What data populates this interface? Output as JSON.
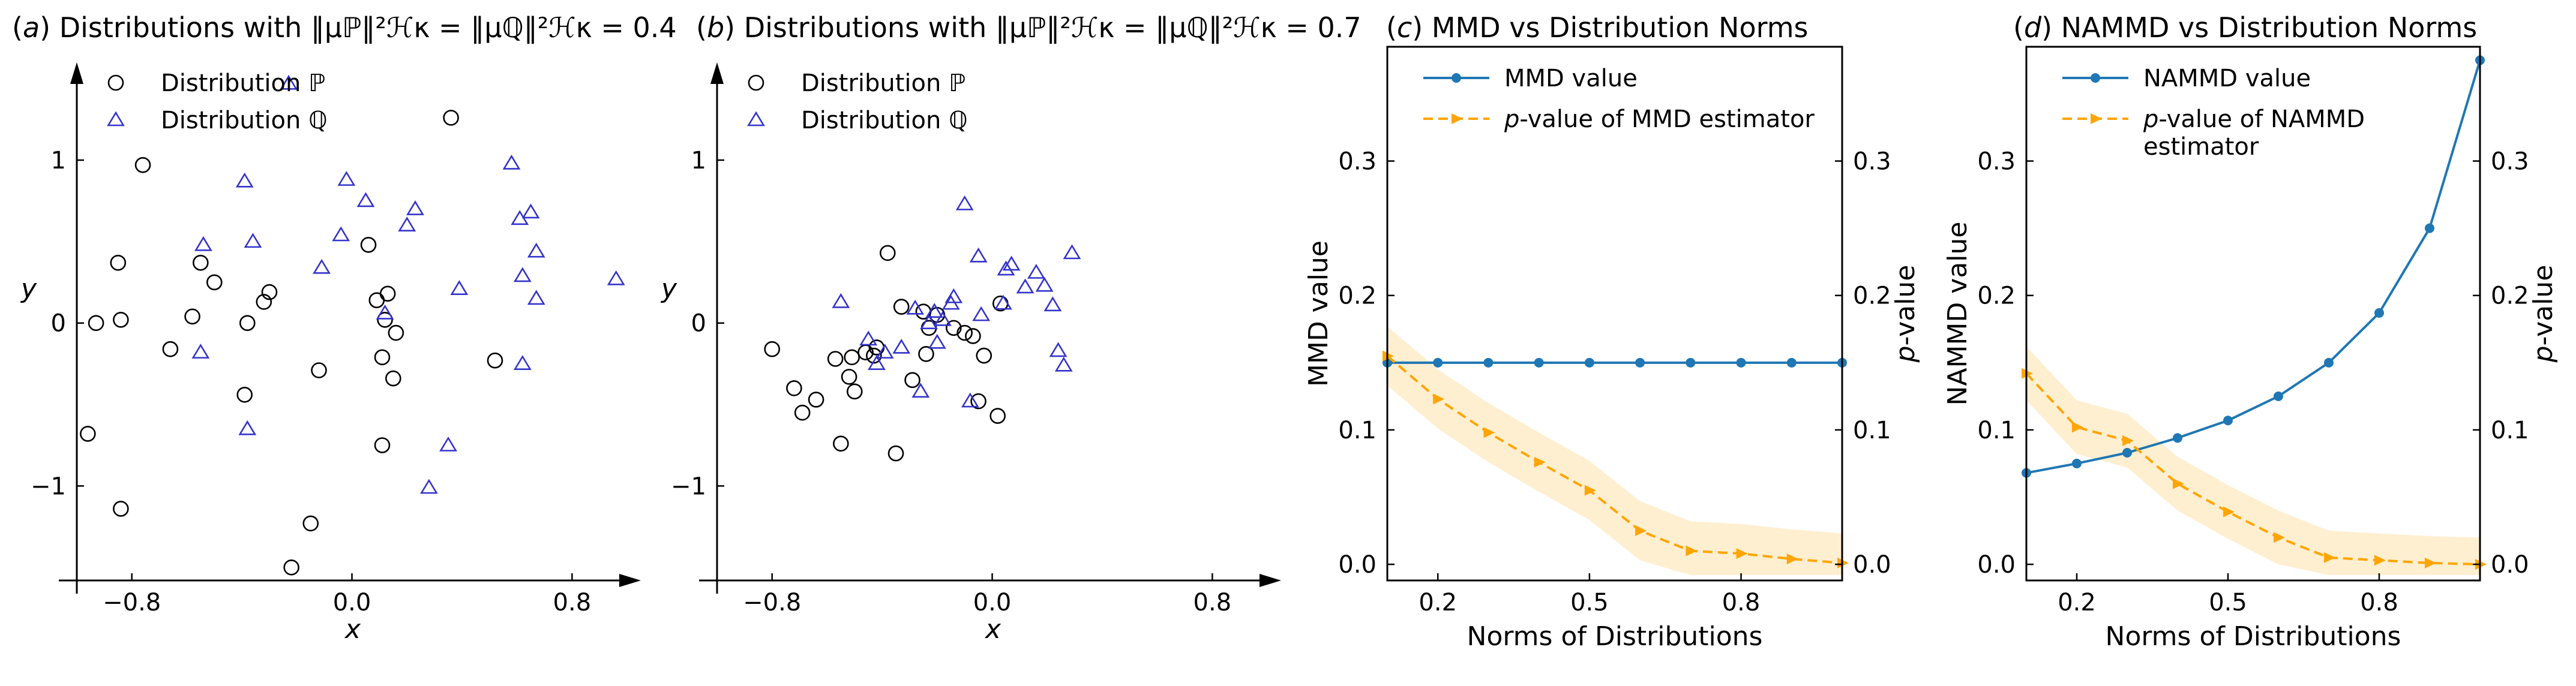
{
  "chart_data": [
    {
      "id": "a",
      "type": "scatter",
      "title": {
        "prefix": "(",
        "letter": "a",
        "suffix": ") Distributions with",
        "formula": "‖μℙ‖²ℋκ = ‖μℚ‖²ℋκ = 0.4"
      },
      "xlabel": "x",
      "ylabel": "y",
      "xlim": [
        -1.0,
        1.05
      ],
      "ylim": [
        -1.58,
        1.6
      ],
      "xticks": [
        {
          "v": -0.8,
          "label": "−0.8"
        },
        {
          "v": 0.0,
          "label": "0.0"
        },
        {
          "v": 0.8,
          "label": "0.8"
        }
      ],
      "yticks": [
        {
          "v": 1,
          "label": "1"
        },
        {
          "v": 0,
          "label": "0"
        },
        {
          "v": -1,
          "label": "−1"
        }
      ],
      "legend": [
        "Distribution ℙ",
        "Distribution ℚ"
      ],
      "series": [
        {
          "name": "P",
          "marker": "circle",
          "color": "#000000",
          "points": [
            [
              -0.93,
              0.0
            ],
            [
              -0.85,
              0.37
            ],
            [
              -0.84,
              0.02
            ],
            [
              -0.76,
              0.97
            ],
            [
              -0.66,
              -0.16
            ],
            [
              -0.58,
              0.04
            ],
            [
              -0.55,
              0.37
            ],
            [
              -0.5,
              0.25
            ],
            [
              -0.39,
              -0.44
            ],
            [
              -0.38,
              0.0
            ],
            [
              -0.32,
              0.13
            ],
            [
              -0.3,
              0.19
            ],
            [
              -0.12,
              -0.29
            ],
            [
              0.06,
              0.48
            ],
            [
              0.09,
              0.14
            ],
            [
              0.11,
              -0.21
            ],
            [
              0.13,
              0.18
            ],
            [
              0.15,
              -0.34
            ],
            [
              0.16,
              -0.06
            ],
            [
              0.11,
              -0.75
            ],
            [
              0.36,
              1.26
            ],
            [
              0.52,
              -0.23
            ],
            [
              -0.96,
              -0.68
            ],
            [
              -0.84,
              -1.14
            ],
            [
              -0.15,
              -1.23
            ],
            [
              -0.22,
              -1.5
            ],
            [
              0.12,
              0.02
            ]
          ]
        },
        {
          "name": "Q",
          "marker": "triangle",
          "color": "#3333cc",
          "points": [
            [
              -0.23,
              1.47
            ],
            [
              -0.39,
              0.87
            ],
            [
              -0.36,
              0.5
            ],
            [
              -0.54,
              0.48
            ],
            [
              -0.55,
              -0.18
            ],
            [
              -0.38,
              -0.65
            ],
            [
              -0.02,
              0.88
            ],
            [
              -0.04,
              0.54
            ],
            [
              0.05,
              0.75
            ],
            [
              0.12,
              0.06
            ],
            [
              0.2,
              0.6
            ],
            [
              0.23,
              0.7
            ],
            [
              -0.11,
              0.34
            ],
            [
              0.39,
              0.21
            ],
            [
              0.35,
              -0.75
            ],
            [
              0.28,
              -1.01
            ],
            [
              0.58,
              0.98
            ],
            [
              0.61,
              0.64
            ],
            [
              0.65,
              0.68
            ],
            [
              0.67,
              0.44
            ],
            [
              0.62,
              0.29
            ],
            [
              0.67,
              0.15
            ],
            [
              0.62,
              -0.25
            ],
            [
              0.96,
              0.27
            ]
          ]
        }
      ]
    },
    {
      "id": "b",
      "type": "scatter",
      "title": {
        "prefix": "(",
        "letter": "b",
        "suffix": ") Distributions with",
        "formula": "‖μℙ‖²ℋκ = ‖μℚ‖²ℋκ = 0.7"
      },
      "xlabel": "x",
      "ylabel": "y",
      "xlim": [
        -1.0,
        1.05
      ],
      "ylim": [
        -1.58,
        1.6
      ],
      "xticks": [
        {
          "v": -0.8,
          "label": "−0.8"
        },
        {
          "v": 0.0,
          "label": "0.0"
        },
        {
          "v": 0.8,
          "label": "0.8"
        }
      ],
      "yticks": [
        {
          "v": 1,
          "label": "1"
        },
        {
          "v": 0,
          "label": "0"
        },
        {
          "v": -1,
          "label": "−1"
        }
      ],
      "legend": [
        "Distribution ℙ",
        "Distribution ℚ"
      ],
      "series": [
        {
          "name": "P",
          "marker": "circle",
          "color": "#000000",
          "points": [
            [
              -0.8,
              -0.16
            ],
            [
              -0.72,
              -0.4
            ],
            [
              -0.69,
              -0.55
            ],
            [
              -0.64,
              -0.47
            ],
            [
              -0.57,
              -0.22
            ],
            [
              -0.52,
              -0.33
            ],
            [
              -0.51,
              -0.21
            ],
            [
              -0.5,
              -0.42
            ],
            [
              -0.46,
              -0.18
            ],
            [
              -0.43,
              -0.2
            ],
            [
              -0.42,
              -0.15
            ],
            [
              -0.38,
              0.43
            ],
            [
              -0.35,
              -0.8
            ],
            [
              -0.33,
              0.1
            ],
            [
              -0.29,
              -0.35
            ],
            [
              -0.25,
              0.07
            ],
            [
              -0.24,
              -0.19
            ],
            [
              -0.23,
              -0.03
            ],
            [
              -0.2,
              0.05
            ],
            [
              -0.14,
              -0.03
            ],
            [
              -0.1,
              -0.06
            ],
            [
              -0.07,
              -0.08
            ],
            [
              -0.05,
              -0.48
            ],
            [
              -0.03,
              -0.2
            ],
            [
              0.03,
              0.12
            ],
            [
              0.02,
              -0.57
            ],
            [
              -0.55,
              -0.74
            ]
          ]
        },
        {
          "name": "Q",
          "marker": "triangle",
          "color": "#3333cc",
          "points": [
            [
              -0.55,
              0.13
            ],
            [
              -0.45,
              -0.1
            ],
            [
              -0.42,
              -0.25
            ],
            [
              -0.39,
              -0.18
            ],
            [
              -0.33,
              -0.15
            ],
            [
              -0.28,
              0.09
            ],
            [
              -0.26,
              -0.42
            ],
            [
              -0.23,
              0.0
            ],
            [
              -0.21,
              0.07
            ],
            [
              -0.2,
              -0.12
            ],
            [
              -0.18,
              0.02
            ],
            [
              -0.15,
              0.12
            ],
            [
              -0.14,
              0.16
            ],
            [
              -0.08,
              -0.48
            ],
            [
              -0.05,
              0.41
            ],
            [
              -0.1,
              0.73
            ],
            [
              0.04,
              0.12
            ],
            [
              0.05,
              0.33
            ],
            [
              0.07,
              0.36
            ],
            [
              0.12,
              0.22
            ],
            [
              0.16,
              0.31
            ],
            [
              0.19,
              0.23
            ],
            [
              0.22,
              0.11
            ],
            [
              0.24,
              -0.17
            ],
            [
              0.26,
              -0.26
            ],
            [
              0.29,
              0.43
            ],
            [
              -0.04,
              0.05
            ]
          ]
        }
      ]
    },
    {
      "id": "c",
      "type": "line",
      "title": {
        "prefix": "(",
        "letter": "c",
        "suffix": ") MMD vs Distribution Norms"
      },
      "xlabel": "Norms of Distributions",
      "ylabel": "MMD value",
      "y2label": {
        "var": "p",
        "rest": "-value"
      },
      "xlim": [
        0.1,
        1.0
      ],
      "ylim": [
        -0.012,
        0.385
      ],
      "xticks": [
        {
          "v": 0.2,
          "label": "0.2"
        },
        {
          "v": 0.5,
          "label": "0.5"
        },
        {
          "v": 0.8,
          "label": "0.8"
        }
      ],
      "yticks": [
        {
          "v": 0.0,
          "label": "0.0"
        },
        {
          "v": 0.1,
          "label": "0.1"
        },
        {
          "v": 0.2,
          "label": "0.2"
        },
        {
          "v": 0.3,
          "label": "0.3"
        }
      ],
      "x": [
        0.1,
        0.2,
        0.3,
        0.4,
        0.5,
        0.6,
        0.7,
        0.8,
        0.9,
        1.0
      ],
      "series": [
        {
          "name": "MMD value",
          "style": "solid",
          "color": "#1f77b4",
          "marker": "dot",
          "values": [
            0.15,
            0.15,
            0.15,
            0.15,
            0.15,
            0.15,
            0.15,
            0.15,
            0.15,
            0.15
          ]
        },
        {
          "name": "p-value of MMD estimator",
          "label_var": "p",
          "label_rest": "-value of MMD estimator",
          "style": "dashed",
          "color": "#ffa500",
          "marker": "arrow",
          "band": 0.022,
          "values": [
            0.155,
            0.123,
            0.098,
            0.076,
            0.055,
            0.025,
            0.01,
            0.008,
            0.004,
            0.001
          ]
        }
      ]
    },
    {
      "id": "d",
      "type": "line",
      "title": {
        "prefix": "(",
        "letter": "d",
        "suffix": ") NAMMD vs Distribution Norms"
      },
      "xlabel": "Norms of Distributions",
      "ylabel": "NAMMD value",
      "y2label": {
        "var": "p",
        "rest": "-value"
      },
      "xlim": [
        0.1,
        1.0
      ],
      "ylim": [
        -0.012,
        0.385
      ],
      "xticks": [
        {
          "v": 0.2,
          "label": "0.2"
        },
        {
          "v": 0.5,
          "label": "0.5"
        },
        {
          "v": 0.8,
          "label": "0.8"
        }
      ],
      "yticks": [
        {
          "v": 0.0,
          "label": "0.0"
        },
        {
          "v": 0.1,
          "label": "0.1"
        },
        {
          "v": 0.2,
          "label": "0.2"
        },
        {
          "v": 0.3,
          "label": "0.3"
        }
      ],
      "x": [
        0.1,
        0.2,
        0.3,
        0.4,
        0.5,
        0.6,
        0.7,
        0.8,
        0.9,
        1.0
      ],
      "series": [
        {
          "name": "NAMMD value",
          "style": "solid",
          "color": "#1f77b4",
          "marker": "dot",
          "values": [
            0.068,
            0.075,
            0.083,
            0.094,
            0.107,
            0.125,
            0.15,
            0.187,
            0.25,
            0.375
          ]
        },
        {
          "name": "p-value of NAMMD estimator",
          "label_var": "p",
          "label_rest": "-value of NAMMD",
          "label_line2": "estimator",
          "style": "dashed",
          "color": "#ffa500",
          "marker": "arrow",
          "band": 0.02,
          "values": [
            0.142,
            0.102,
            0.092,
            0.06,
            0.039,
            0.02,
            0.005,
            0.003,
            0.001,
            0.0
          ]
        }
      ]
    }
  ]
}
